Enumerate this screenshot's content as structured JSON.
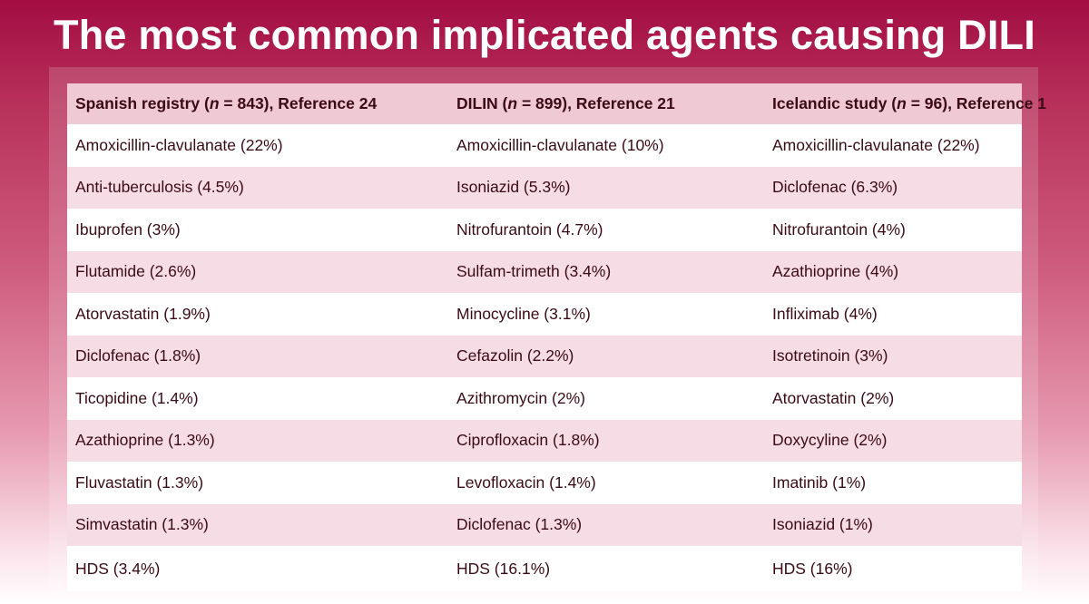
{
  "title": "The most common implicated agents causing DILI",
  "headers": [
    {
      "pre": "Spanish registry (",
      "n": "n",
      "post": " = 843), Reference 24"
    },
    {
      "pre": "DILIN (",
      "n": "n",
      "post": " = 899), Reference 21"
    },
    {
      "pre": "Icelandic study (",
      "n": "n",
      "post": " = 96), Reference 1"
    }
  ],
  "rows": [
    [
      "Amoxicillin-clavulanate (22%)",
      "Amoxicillin-clavulanate (10%)",
      "Amoxicillin-clavulanate (22%)"
    ],
    [
      "Anti-tuberculosis (4.5%)",
      "Isoniazid (5.3%)",
      "Diclofenac (6.3%)"
    ],
    [
      "Ibuprofen (3%)",
      "Nitrofurantoin (4.7%)",
      "Nitrofurantoin (4%)"
    ],
    [
      "Flutamide (2.6%)",
      "Sulfam-trimeth (3.4%)",
      "Azathioprine (4%)"
    ],
    [
      "Atorvastatin (1.9%)",
      "Minocycline (3.1%)",
      "Infliximab (4%)"
    ],
    [
      "Diclofenac (1.8%)",
      "Cefazolin (2.2%)",
      "Isotretinoin (3%)"
    ],
    [
      "Ticopidine (1.4%)",
      "Azithromycin (2%)",
      "Atorvastatin (2%)"
    ],
    [
      "Azathioprine (1.3%)",
      "Ciprofloxacin (1.8%)",
      "Doxycyline (2%)"
    ],
    [
      "Fluvastatin (1.3%)",
      "Levofloxacin (1.4%)",
      "Imatinib (1%)"
    ],
    [
      "Simvastatin (1.3%)",
      "Diclofenac (1.3%)",
      "Isoniazid (1%)"
    ],
    [
      "HDS (3.4%)",
      "HDS (16.1%)",
      "HDS (16%)"
    ]
  ]
}
